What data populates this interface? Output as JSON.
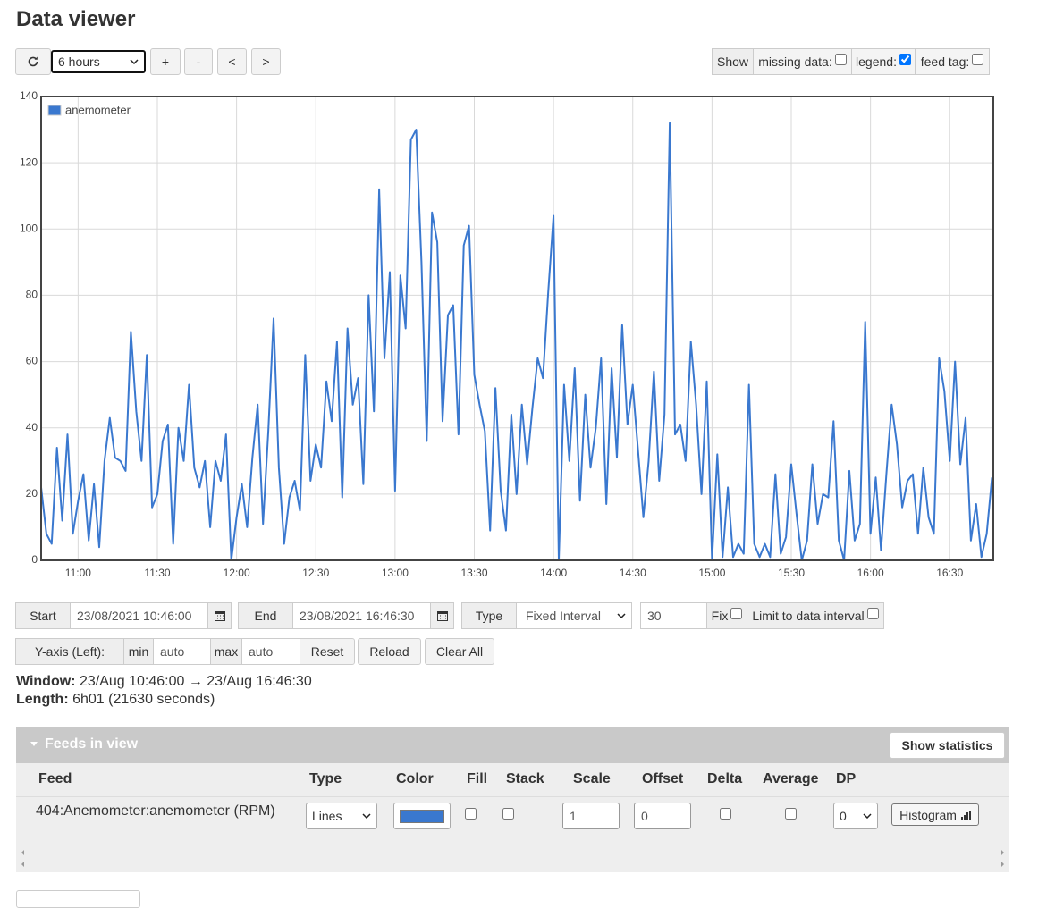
{
  "header": {
    "title": "Data viewer"
  },
  "toolbar": {
    "range": "6 hours",
    "buttons": [
      "+",
      "-",
      "<",
      ">"
    ],
    "show": "Show",
    "options": [
      {
        "label": "missing data:",
        "checked": false
      },
      {
        "label": "legend:",
        "checked": true
      },
      {
        "label": "feed tag:",
        "checked": false
      }
    ]
  },
  "chart_data": {
    "type": "line",
    "legend": "top-left",
    "grid": true,
    "x": [
      "10:46",
      "10:48",
      "10:50",
      "10:52",
      "10:54",
      "10:56",
      "10:58",
      "11:00",
      "11:02",
      "11:04",
      "11:06",
      "11:08",
      "11:10",
      "11:12",
      "11:14",
      "11:16",
      "11:18",
      "11:20",
      "11:22",
      "11:24",
      "11:26",
      "11:28",
      "11:30",
      "11:32",
      "11:34",
      "11:36",
      "11:38",
      "11:40",
      "11:42",
      "11:44",
      "11:46",
      "11:48",
      "11:50",
      "11:52",
      "11:54",
      "11:56",
      "11:58",
      "12:00",
      "12:02",
      "12:04",
      "12:06",
      "12:08",
      "12:10",
      "12:12",
      "12:14",
      "12:16",
      "12:18",
      "12:20",
      "12:22",
      "12:24",
      "12:26",
      "12:28",
      "12:30",
      "12:32",
      "12:34",
      "12:36",
      "12:38",
      "12:40",
      "12:42",
      "12:44",
      "12:46",
      "12:48",
      "12:50",
      "12:52",
      "12:54",
      "12:56",
      "12:58",
      "13:00",
      "13:02",
      "13:04",
      "13:06",
      "13:08",
      "13:10",
      "13:12",
      "13:14",
      "13:16",
      "13:18",
      "13:20",
      "13:22",
      "13:24",
      "13:26",
      "13:28",
      "13:30",
      "13:32",
      "13:34",
      "13:36",
      "13:38",
      "13:40",
      "13:42",
      "13:44",
      "13:46",
      "13:48",
      "13:50",
      "13:52",
      "13:54",
      "13:56",
      "13:58",
      "14:00",
      "14:02",
      "14:04",
      "14:06",
      "14:08",
      "14:10",
      "14:12",
      "14:14",
      "14:16",
      "14:18",
      "14:20",
      "14:22",
      "14:24",
      "14:26",
      "14:28",
      "14:30",
      "14:32",
      "14:34",
      "14:36",
      "14:38",
      "14:40",
      "14:42",
      "14:44",
      "14:46",
      "14:48",
      "14:50",
      "14:52",
      "14:54",
      "14:56",
      "14:58",
      "15:00",
      "15:02",
      "15:04",
      "15:06",
      "15:08",
      "15:10",
      "15:12",
      "15:14",
      "15:16",
      "15:18",
      "15:20",
      "15:22",
      "15:24",
      "15:26",
      "15:28",
      "15:30",
      "15:32",
      "15:34",
      "15:36",
      "15:38",
      "15:40",
      "15:42",
      "15:44",
      "15:46",
      "15:48",
      "15:50",
      "15:52",
      "15:54",
      "15:56",
      "15:58",
      "16:00",
      "16:02",
      "16:04",
      "16:06",
      "16:08",
      "16:10",
      "16:12",
      "16:14",
      "16:16",
      "16:18",
      "16:20",
      "16:22",
      "16:24",
      "16:26",
      "16:28",
      "16:30",
      "16:32",
      "16:34",
      "16:36",
      "16:38",
      "16:40",
      "16:42",
      "16:44",
      "16:46"
    ],
    "series": [
      {
        "name": "anemometer",
        "color": "#3a78cf",
        "values": [
          22,
          8,
          5,
          34,
          12,
          38,
          8,
          18,
          26,
          6,
          23,
          4,
          30,
          43,
          31,
          30,
          27,
          69,
          45,
          30,
          62,
          16,
          20,
          36,
          41,
          5,
          40,
          30,
          53,
          28,
          22,
          30,
          10,
          30,
          24,
          38,
          0,
          13,
          23,
          10,
          31,
          47,
          11,
          39,
          73,
          28,
          5,
          19,
          24,
          15,
          62,
          24,
          35,
          28,
          54,
          42,
          66,
          19,
          70,
          47,
          55,
          23,
          80,
          45,
          112,
          61,
          87,
          21,
          86,
          70,
          127,
          130,
          90,
          36,
          105,
          96,
          42,
          74,
          77,
          38,
          95,
          101,
          56,
          47,
          39,
          9,
          52,
          21,
          9,
          44,
          20,
          47,
          29,
          46,
          61,
          55,
          81,
          104,
          0,
          53,
          30,
          58,
          18,
          50,
          28,
          40,
          61,
          17,
          58,
          31,
          71,
          41,
          53,
          33,
          13,
          30,
          57,
          24,
          44,
          132,
          38,
          41,
          30,
          66,
          47,
          20,
          54,
          0,
          32,
          1,
          22,
          1,
          5,
          2,
          53,
          5,
          1,
          5,
          1,
          26,
          2,
          7,
          29,
          14,
          0,
          6,
          29,
          11,
          20,
          19,
          42,
          6,
          0,
          27,
          6,
          11,
          72,
          8,
          25,
          3,
          26,
          47,
          35,
          16,
          24,
          26,
          8,
          28,
          13,
          8,
          61,
          51,
          30,
          60,
          29,
          43,
          6,
          17,
          1,
          8,
          25
        ]
      }
    ],
    "xlim": [
      "10:46:00",
      "16:46:30"
    ],
    "xticks": [
      "11:00",
      "11:30",
      "12:00",
      "12:30",
      "13:00",
      "13:30",
      "14:00",
      "14:30",
      "15:00",
      "15:30",
      "16:00",
      "16:30"
    ],
    "ylim": [
      0,
      140
    ],
    "yticks": [
      0,
      20,
      40,
      60,
      80,
      100,
      120,
      140
    ]
  },
  "controls": {
    "start": {
      "label": "Start",
      "value": "23/08/2021 10:46:00"
    },
    "end": {
      "label": "End",
      "value": "23/08/2021 16:46:30"
    },
    "type": {
      "label": "Type",
      "value": "Fixed Interval"
    },
    "interval": "30",
    "fix": {
      "label": "Fix",
      "checked": false
    },
    "limit": {
      "label": "Limit to data interval",
      "checked": false
    },
    "yaxis": {
      "label": "Y-axis (Left):",
      "min_label": "min",
      "min": "auto",
      "max_label": "max",
      "max": "auto",
      "reset": "Reset"
    },
    "reload": "Reload",
    "clear": "Clear All"
  },
  "window": {
    "label": "Window:",
    "value": "23/Aug 10:46:00 → 23/Aug 16:46:30"
  },
  "length": {
    "label": "Length:",
    "value": "6h01 (21630 seconds)"
  },
  "feeds": {
    "title": "Feeds in view",
    "stats_button": "Show statistics",
    "columns": [
      "Feed",
      "Type",
      "Color",
      "Fill",
      "Stack",
      "Scale",
      "Offset",
      "Delta",
      "Average",
      "DP"
    ],
    "rows": [
      {
        "feed": "404:Anemometer:anemometer (RPM)",
        "type": "Lines",
        "fill": false,
        "stack": false,
        "scale": "1",
        "offset": "0",
        "delta": false,
        "average": false,
        "dp": "0",
        "action": "Histogram"
      }
    ]
  }
}
